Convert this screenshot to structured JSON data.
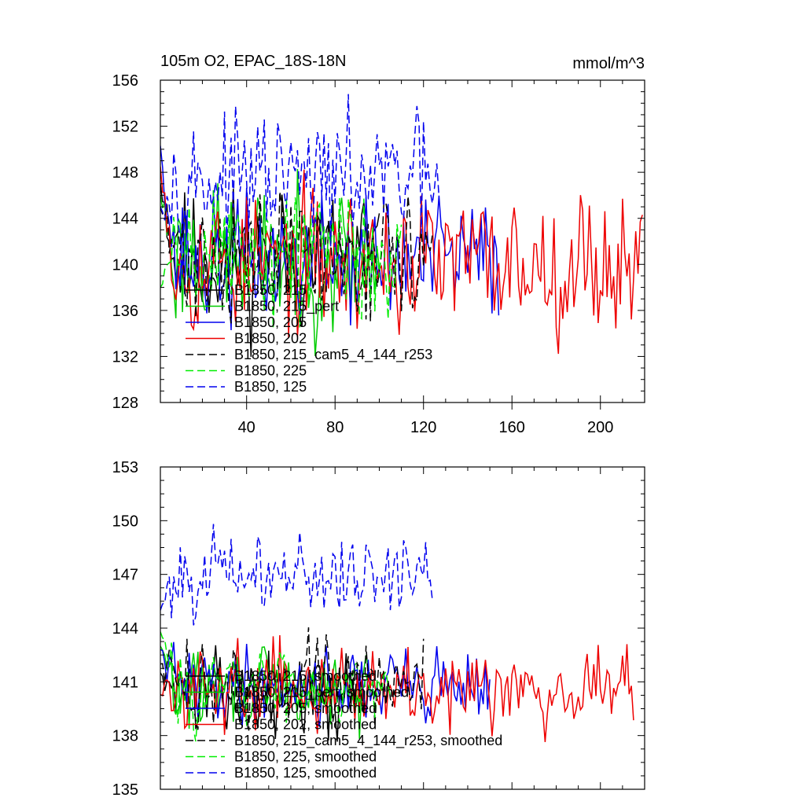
{
  "chart_data": [
    {
      "type": "line",
      "title": "105m O2, EPAC_18S-18N",
      "units": "mmol/m^3",
      "xlabel": "",
      "ylabel": "",
      "xlim": [
        1,
        220
      ],
      "ylim": [
        128,
        156
      ],
      "x_ticks": [
        40,
        80,
        120,
        160,
        200
      ],
      "y_ticks": [
        128,
        132,
        136,
        140,
        144,
        148,
        152,
        156
      ],
      "x_tick_labels": [
        "40",
        "80",
        "120",
        "160",
        "200"
      ],
      "y_tick_labels": [
        "128",
        "132",
        "136",
        "140",
        "144",
        "148",
        "152",
        "156"
      ],
      "series": [
        {
          "name": "B1850, 215",
          "color": "#000000",
          "dash": "solid",
          "start": 1,
          "length": 100,
          "base": 140.5,
          "amp": 3.5,
          "first": 147.0,
          "seed": 11
        },
        {
          "name": "B1850, 215_pert",
          "color": "#00cc00",
          "dash": "solid",
          "start": 1,
          "length": 100,
          "base": 140.5,
          "amp": 3.6,
          "first": 146.0,
          "seed": 23
        },
        {
          "name": "B1850, 205",
          "color": "#0000ee",
          "dash": "solid",
          "start": 1,
          "length": 154,
          "base": 140.3,
          "amp": 3.3,
          "first": 150.3,
          "seed": 37
        },
        {
          "name": "B1850, 202",
          "color": "#ee0000",
          "dash": "solid",
          "start": 1,
          "length": 219,
          "base": 140.2,
          "amp": 3.5,
          "first": 148.5,
          "seed": 53
        },
        {
          "name": "B1850, 215_cam5_4_144_r253",
          "color": "#000000",
          "dash": "dashed",
          "start": 1,
          "length": 124,
          "base": 140.8,
          "amp": 3.2,
          "first": 145.0,
          "seed": 71
        },
        {
          "name": "B1850, 225",
          "color": "#00ee00",
          "dash": "dashed",
          "start": 1,
          "length": 110,
          "base": 141.0,
          "amp": 3.8,
          "first": 138.0,
          "seed": 89
        },
        {
          "name": "B1850, 125",
          "color": "#0000ee",
          "dash": "dashed",
          "start": 1,
          "length": 127,
          "base": 147.3,
          "amp": 3.0,
          "first": 145.0,
          "seed": 97
        }
      ]
    },
    {
      "type": "line",
      "title": "",
      "xlabel": "",
      "ylabel": "",
      "xlim": [
        1,
        220
      ],
      "ylim": [
        135,
        153
      ],
      "y_ticks": [
        135,
        138,
        141,
        144,
        147,
        150,
        153
      ],
      "y_tick_labels": [
        "135",
        "138",
        "141",
        "144",
        "147",
        "150",
        "153"
      ],
      "series": [
        {
          "name": "B1850, 215, smoothed",
          "color": "#000000",
          "dash": "solid",
          "start": 1,
          "length": 95,
          "base": 140.3,
          "amp": 1.2,
          "first": 141.5,
          "seed": 13
        },
        {
          "name": "B1850, 215_pert, smoothed",
          "color": "#00cc00",
          "dash": "solid",
          "start": 1,
          "length": 95,
          "base": 140.5,
          "amp": 1.3,
          "first": 143.0,
          "seed": 29
        },
        {
          "name": "B1850, 205, smoothed",
          "color": "#0000ee",
          "dash": "solid",
          "start": 1,
          "length": 150,
          "base": 140.9,
          "amp": 1.2,
          "first": 142.8,
          "seed": 41
        },
        {
          "name": "B1850, 202, smoothed",
          "color": "#ee0000",
          "dash": "solid",
          "start": 1,
          "length": 215,
          "base": 140.8,
          "amp": 1.3,
          "first": 140.3,
          "seed": 59
        },
        {
          "name": "B1850, 215_cam5_4_144_r253, smoothed",
          "color": "#000000",
          "dash": "dashed",
          "start": 1,
          "length": 120,
          "base": 140.8,
          "amp": 1.4,
          "first": 142.0,
          "seed": 73
        },
        {
          "name": "B1850, 225, smoothed",
          "color": "#00ee00",
          "dash": "dashed",
          "start": 1,
          "length": 105,
          "base": 140.8,
          "amp": 1.2,
          "first": 143.8,
          "seed": 83
        },
        {
          "name": "B1850, 125, smoothed",
          "color": "#0000ee",
          "dash": "dashed",
          "start": 1,
          "length": 124,
          "base": 147.0,
          "amp": 1.3,
          "first": 145.0,
          "seed": 101
        }
      ]
    }
  ]
}
